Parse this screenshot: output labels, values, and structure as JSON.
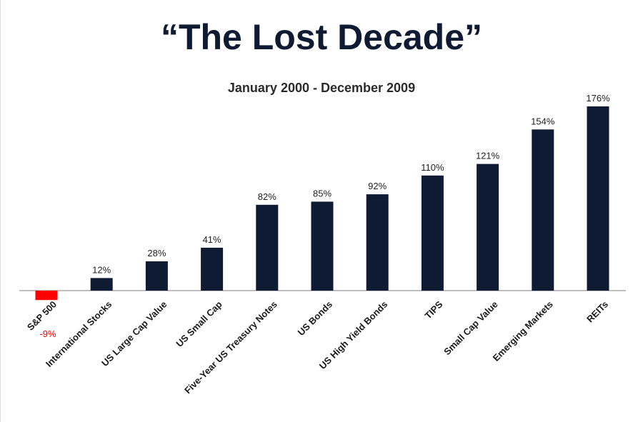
{
  "header": {
    "title": "“The Lost Decade”",
    "subtitle": "January 2000 - December 2009"
  },
  "colors": {
    "bar": "#0f1a33",
    "negative_bar": "#ff0000",
    "negative_label": "#ff0000",
    "axis": "#7f7f7f"
  },
  "chart_data": {
    "type": "bar",
    "title": "“The Lost Decade”",
    "subtitle": "January 2000 - December 2009",
    "categories": [
      "S&P 500",
      "International Stocks",
      "US Large Cap Value",
      "US Small Cap",
      "Five-Year US Treasury Notes",
      "US Bonds",
      "US High Yield Bonds",
      "TIPS",
      "Small Cap Value",
      "Emerging Markets",
      "REITs"
    ],
    "values": [
      -9,
      12,
      28,
      41,
      82,
      85,
      92,
      110,
      121,
      154,
      176
    ],
    "value_labels": [
      "-9%",
      "12%",
      "28%",
      "41%",
      "82%",
      "85%",
      "92%",
      "110%",
      "121%",
      "154%",
      "176%"
    ],
    "xlabel": "",
    "ylabel": "",
    "ylim": [
      -10,
      176
    ],
    "grid": false,
    "legend": "none"
  }
}
